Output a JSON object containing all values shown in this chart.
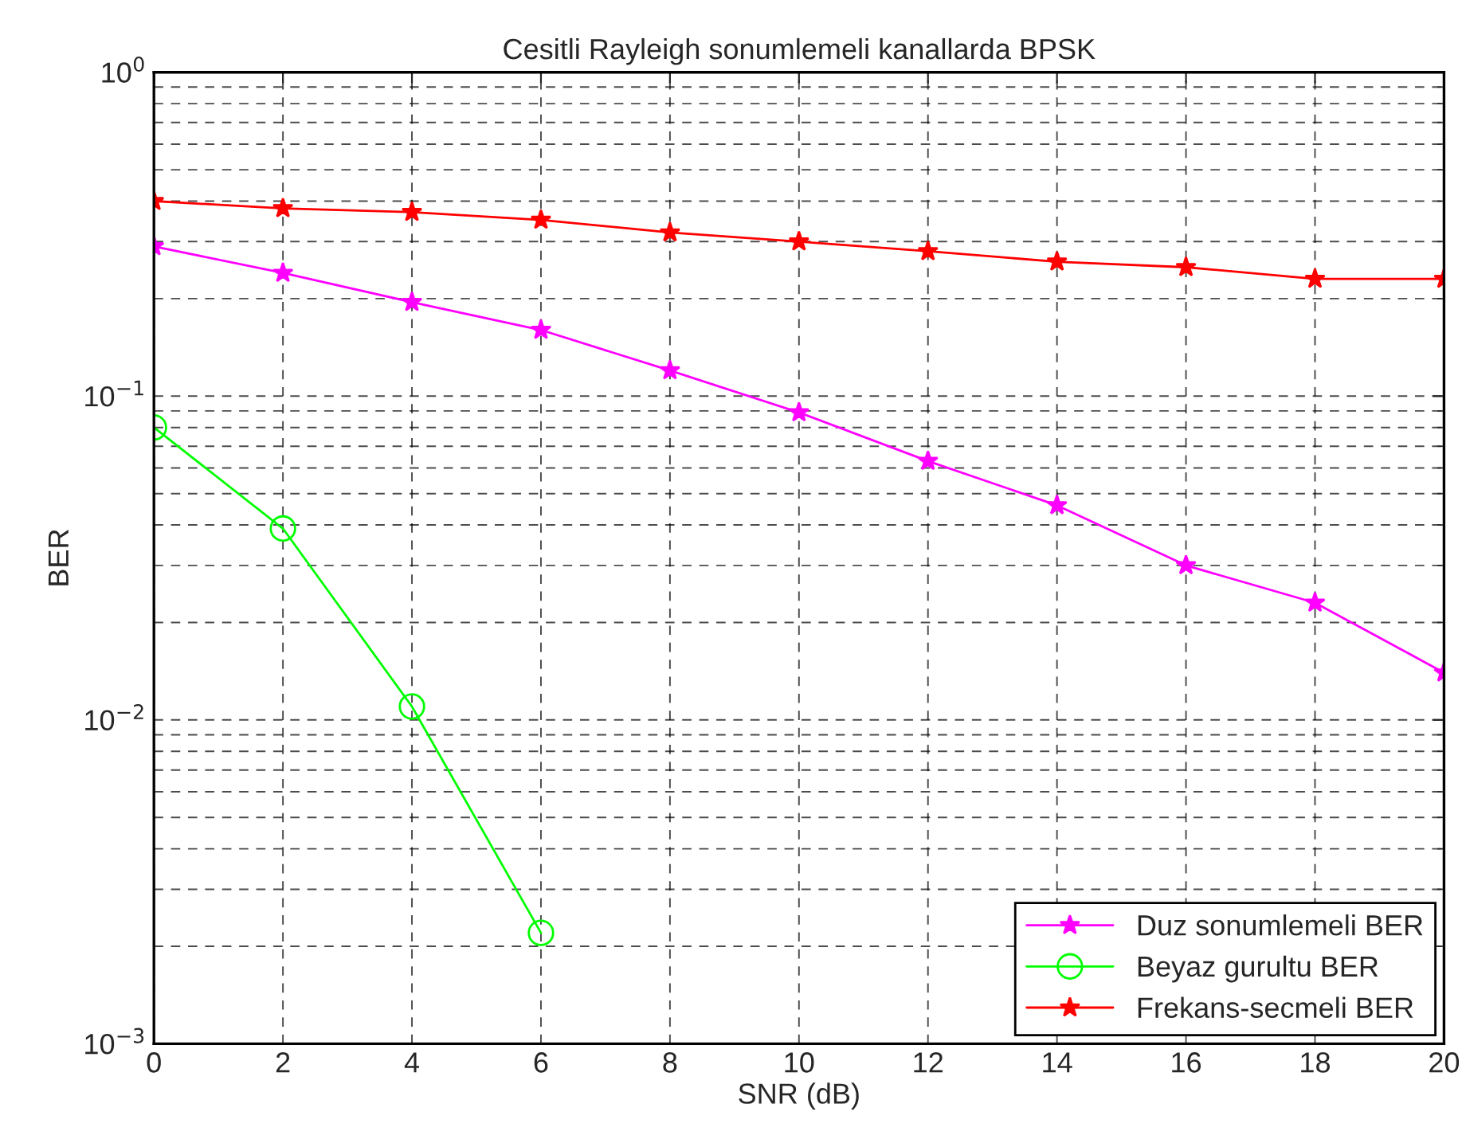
{
  "chart_data": {
    "type": "line",
    "title": "Cesitli Rayleigh sonumlemeli kanallarda BPSK",
    "xlabel": "SNR (dB)",
    "ylabel": "BER",
    "x": [
      0,
      2,
      4,
      6,
      8,
      10,
      12,
      14,
      16,
      18,
      20
    ],
    "series": [
      {
        "name": "Duz sonumlemeli BER",
        "color": "#ff00ff",
        "marker": "star",
        "values": [
          0.29,
          0.24,
          0.195,
          0.16,
          0.12,
          0.089,
          0.063,
          0.046,
          0.03,
          0.023,
          0.014
        ]
      },
      {
        "name": "Beyaz gurultu BER",
        "color": "#00ff00",
        "marker": "circle",
        "x": [
          0,
          2,
          4,
          6
        ],
        "values": [
          0.08,
          0.039,
          0.011,
          0.0022
        ]
      },
      {
        "name": "Frekans-secmeli BER",
        "color": "#ff0000",
        "marker": "star",
        "values": [
          0.4,
          0.38,
          0.37,
          0.35,
          0.32,
          0.3,
          0.28,
          0.26,
          0.25,
          0.23,
          0.23
        ]
      }
    ],
    "log": "y",
    "xlim": [
      0,
      20
    ],
    "ylim": [
      0.001,
      1
    ],
    "xticks": [
      0,
      2,
      4,
      6,
      8,
      10,
      12,
      14,
      16,
      18,
      20
    ],
    "yticks": [
      {
        "value": 0.001,
        "label": "10$^{−3}$"
      },
      {
        "value": 0.01,
        "label": "10$^{−2}$"
      },
      {
        "value": 0.1,
        "label": "10$^{−1}$"
      },
      {
        "value": 1,
        "label": "10$^{0}$"
      }
    ],
    "grid": true,
    "legend": "bottom right",
    "line_style": "solid"
  }
}
